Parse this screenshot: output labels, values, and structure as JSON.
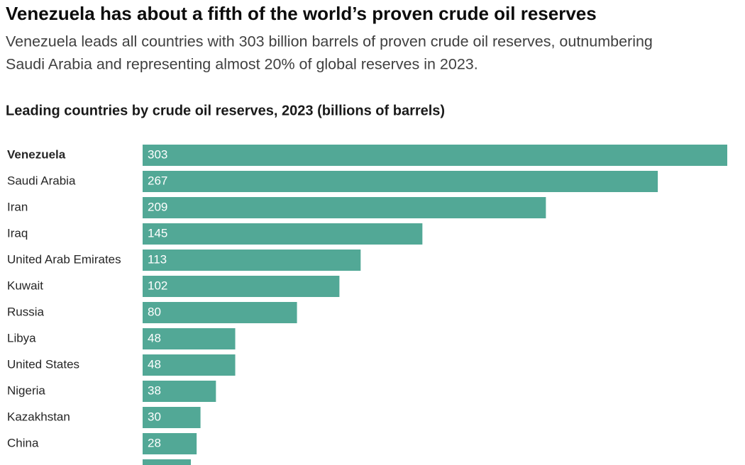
{
  "chart_data": {
    "type": "hbar",
    "title": "Venezuela has about a fifth of the world’s proven crude oil reserves",
    "subtitle": [
      "Venezuela leads all countries with 303 billion barrels of proven crude oil reserves, outnumbering",
      "Saudi Arabia and representing almost 20% of global reserves in 2023."
    ],
    "chart_title": "Leading countries by crude oil reserves, 2023 (billions of barrels)",
    "categories": [
      "Venezuela",
      "Saudi Arabia",
      "Iran",
      "Iraq",
      "United Arab Emirates",
      "Kuwait",
      "Russia",
      "Libya",
      "United States",
      "Nigeria",
      "Kazakhstan",
      "China",
      null
    ],
    "values": [
      303,
      267,
      209,
      145,
      113,
      102,
      80,
      48,
      48,
      38,
      30,
      28,
      25
    ],
    "color": "#52a896",
    "highlight": 0,
    "xlim": [
      0,
      303
    ]
  }
}
